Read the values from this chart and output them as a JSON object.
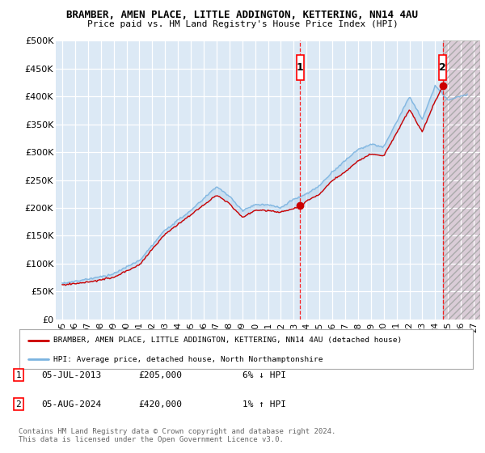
{
  "title": "BRAMBER, AMEN PLACE, LITTLE ADDINGTON, KETTERING, NN14 4AU",
  "subtitle": "Price paid vs. HM Land Registry's House Price Index (HPI)",
  "ylim": [
    0,
    500000
  ],
  "xlim_start": 1994.5,
  "xlim_end": 2027.5,
  "yticks": [
    0,
    50000,
    100000,
    150000,
    200000,
    250000,
    300000,
    350000,
    400000,
    450000,
    500000
  ],
  "ytick_labels": [
    "£0",
    "£50K",
    "£100K",
    "£150K",
    "£200K",
    "£250K",
    "£300K",
    "£350K",
    "£400K",
    "£450K",
    "£500K"
  ],
  "xticks": [
    1995,
    1996,
    1997,
    1998,
    1999,
    2000,
    2001,
    2002,
    2003,
    2004,
    2005,
    2006,
    2007,
    2008,
    2009,
    2010,
    2011,
    2012,
    2013,
    2014,
    2015,
    2016,
    2017,
    2018,
    2019,
    2020,
    2021,
    2022,
    2023,
    2024,
    2025,
    2026,
    2027
  ],
  "xtick_labels": [
    "95",
    "96",
    "97",
    "98",
    "99",
    "00",
    "01",
    "02",
    "03",
    "04",
    "05",
    "06",
    "07",
    "08",
    "09",
    "10",
    "11",
    "12",
    "13",
    "14",
    "15",
    "16",
    "17",
    "18",
    "19",
    "20",
    "21",
    "22",
    "23",
    "24",
    "25",
    "26",
    "27"
  ],
  "bg_color": "#dce9f5",
  "fig_bg_color": "#ffffff",
  "grid_color": "#ffffff",
  "hpi_color": "#7ab3e0",
  "property_color": "#cc0000",
  "marker1_date_x": 2013.5,
  "marker1_y": 205000,
  "marker1_label": "1",
  "marker1_date_str": "05-JUL-2013",
  "marker1_price": "£205,000",
  "marker1_hpi": "6% ↓ HPI",
  "marker2_date_x": 2024.58,
  "marker2_y": 420000,
  "marker2_label": "2",
  "marker2_date_str": "05-AUG-2024",
  "marker2_price": "£420,000",
  "marker2_hpi": "1% ↑ HPI",
  "legend_line1": "BRAMBER, AMEN PLACE, LITTLE ADDINGTON, KETTERING, NN14 4AU (detached house)",
  "legend_line2": "HPI: Average price, detached house, North Northamptonshire",
  "footnote": "Contains HM Land Registry data © Crown copyright and database right 2024.\nThis data is licensed under the Open Government Licence v3.0.",
  "hatch_start": 2024.58
}
